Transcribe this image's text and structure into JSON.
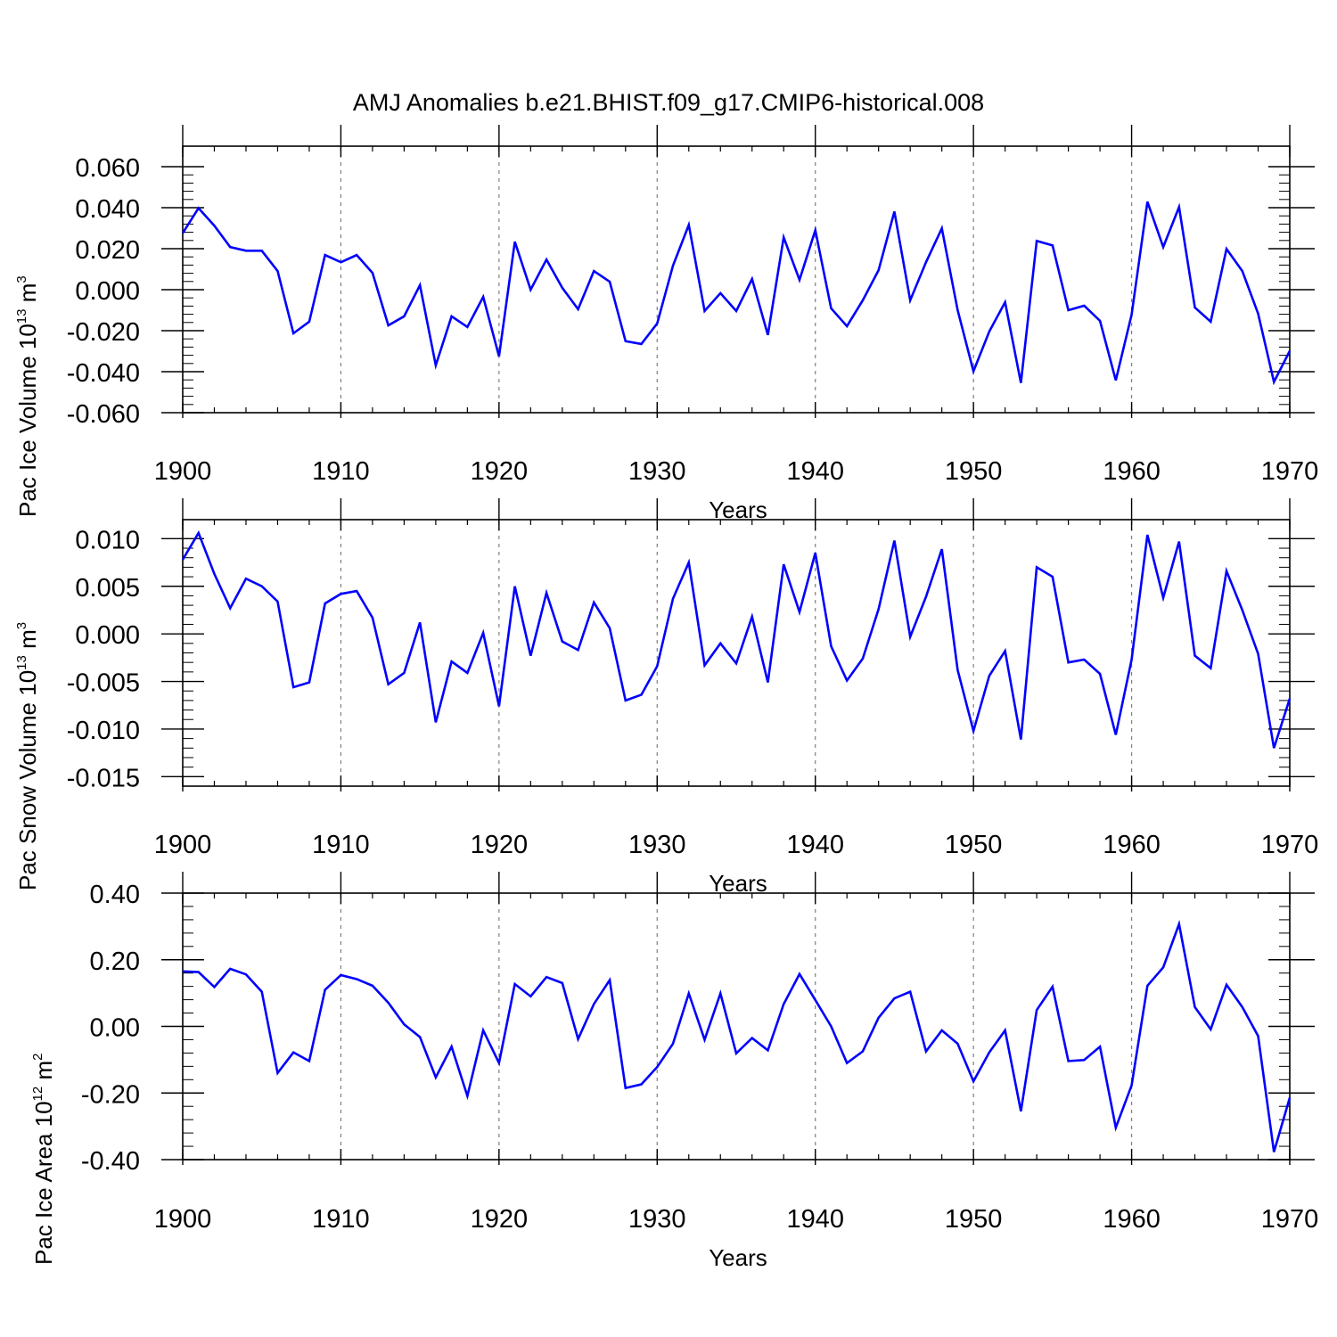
{
  "title": "AMJ Anomalies b.e21.BHIST.f09_g17.CMIP6-historical.008",
  "colors": {
    "series": "#0000ff",
    "axis": "#000000",
    "grid": "#7f7f7f"
  },
  "chart_data": [
    {
      "type": "line",
      "ylabel": {
        "text": "Pac Ice Volume 10",
        "exp": "13",
        "unit": " m",
        "unit_exp": "3"
      },
      "xlabel": "Years",
      "xlim": [
        1900,
        1970
      ],
      "ylim": [
        -0.06,
        0.07
      ],
      "yticks": [
        -0.06,
        -0.04,
        -0.02,
        0.0,
        0.02,
        0.04,
        0.06
      ],
      "ytick_labels": [
        "-0.060",
        "-0.040",
        "-0.020",
        "0.000",
        "0.020",
        "0.040",
        "0.060"
      ],
      "xticks": [
        1900,
        1910,
        1920,
        1930,
        1940,
        1950,
        1960,
        1970
      ],
      "xtick_labels": [
        "1900",
        "1910",
        "1920",
        "1930",
        "1940",
        "1950",
        "1960",
        "1970"
      ],
      "grid": "dashed vertical at 1910-1960",
      "x": [
        1900,
        1901,
        1902,
        1903,
        1904,
        1905,
        1906,
        1907,
        1908,
        1909,
        1910,
        1911,
        1912,
        1913,
        1914,
        1915,
        1916,
        1917,
        1918,
        1919,
        1920,
        1921,
        1922,
        1923,
        1924,
        1925,
        1926,
        1927,
        1928,
        1929,
        1930,
        1931,
        1932,
        1933,
        1934,
        1935,
        1936,
        1937,
        1938,
        1939,
        1940,
        1941,
        1942,
        1943,
        1944,
        1945,
        1946,
        1947,
        1948,
        1949,
        1950,
        1951,
        1952,
        1953,
        1954,
        1955,
        1956,
        1957,
        1958,
        1959,
        1960,
        1961,
        1962,
        1963,
        1964,
        1965,
        1966,
        1967,
        1968,
        1969,
        1970
      ],
      "series": [
        {
          "values": [
            0.0276,
            0.0398,
            0.0312,
            0.0208,
            0.019,
            0.019,
            0.0091,
            -0.0213,
            -0.0156,
            0.0169,
            0.0134,
            0.0169,
            0.0082,
            -0.0174,
            -0.013,
            0.0022,
            -0.0369,
            -0.013,
            -0.0182,
            -0.0035,
            -0.0325,
            0.0234,
            0.0,
            0.0147,
            0.0009,
            -0.0095,
            0.0091,
            0.0039,
            -0.0251,
            -0.0265,
            -0.0165,
            0.0117,
            0.0316,
            -0.0104,
            -0.0017,
            -0.0104,
            0.0052,
            -0.0221,
            0.0255,
            0.0048,
            0.029,
            -0.0091,
            -0.0178,
            -0.0052,
            0.0095,
            0.0381,
            -0.0052,
            0.0134,
            0.0299,
            -0.01,
            -0.0398,
            -0.0204,
            -0.0061,
            -0.0455,
            0.0238,
            0.0216,
            -0.01,
            -0.0078,
            -0.0152,
            -0.0442,
            -0.0122,
            0.0429,
            0.0208,
            0.0403,
            -0.0087,
            -0.0156,
            0.0199,
            0.0091,
            -0.0117,
            -0.045,
            -0.0299
          ]
        }
      ]
    },
    {
      "type": "line",
      "ylabel": {
        "text": "Pac Snow Volume 10",
        "exp": "13",
        "unit": " m",
        "unit_exp": "3"
      },
      "xlabel": "Years",
      "xlim": [
        1900,
        1970
      ],
      "ylim": [
        -0.016,
        0.012
      ],
      "yticks": [
        -0.015,
        -0.01,
        -0.005,
        0.0,
        0.005,
        0.01
      ],
      "ytick_labels": [
        "-0.015",
        "-0.010",
        "-0.005",
        "0.000",
        "0.005",
        "0.010"
      ],
      "xticks": [
        1900,
        1910,
        1920,
        1930,
        1940,
        1950,
        1960,
        1970
      ],
      "xtick_labels": [
        "1900",
        "1910",
        "1920",
        "1930",
        "1940",
        "1950",
        "1960",
        "1970"
      ],
      "grid": "dashed vertical at 1910-1960",
      "x": [
        1900,
        1901,
        1902,
        1903,
        1904,
        1905,
        1906,
        1907,
        1908,
        1909,
        1910,
        1911,
        1912,
        1913,
        1914,
        1915,
        1916,
        1917,
        1918,
        1919,
        1920,
        1921,
        1922,
        1923,
        1924,
        1925,
        1926,
        1927,
        1928,
        1929,
        1930,
        1931,
        1932,
        1933,
        1934,
        1935,
        1936,
        1937,
        1938,
        1939,
        1940,
        1941,
        1942,
        1943,
        1944,
        1945,
        1946,
        1947,
        1948,
        1949,
        1950,
        1951,
        1952,
        1953,
        1954,
        1955,
        1956,
        1957,
        1958,
        1959,
        1960,
        1961,
        1962,
        1963,
        1964,
        1965,
        1966,
        1967,
        1968,
        1969,
        1970
      ],
      "series": [
        {
          "values": [
            0.0078,
            0.0106,
            0.0063,
            0.0027,
            0.0058,
            0.005,
            0.0034,
            -0.0056,
            -0.0051,
            0.0032,
            0.0042,
            0.0045,
            0.0017,
            -0.0053,
            -0.0041,
            0.0012,
            -0.0093,
            -0.0029,
            -0.0041,
            0.0001,
            -0.0076,
            0.005,
            -0.0023,
            0.0043,
            -0.0008,
            -0.0017,
            0.0033,
            0.0006,
            -0.007,
            -0.0064,
            -0.0034,
            0.0037,
            0.0075,
            -0.0033,
            -0.001,
            -0.0031,
            0.0018,
            -0.0051,
            0.0073,
            0.0023,
            0.0085,
            -0.0013,
            -0.0049,
            -0.0026,
            0.0026,
            0.0098,
            -0.0003,
            0.0039,
            0.0089,
            -0.0038,
            -0.0102,
            -0.0044,
            -0.0018,
            -0.0111,
            0.007,
            0.006,
            -0.003,
            -0.0027,
            -0.0042,
            -0.0106,
            -0.0027,
            0.0104,
            0.0038,
            0.0097,
            -0.0023,
            -0.0036,
            0.0066,
            0.0025,
            -0.0021,
            -0.012,
            -0.0068
          ]
        }
      ]
    },
    {
      "type": "line",
      "ylabel": {
        "text": "Pac Ice Area 10",
        "exp": "12",
        "unit": " m",
        "unit_exp": "2"
      },
      "xlabel": "Years",
      "xlim": [
        1900,
        1970
      ],
      "ylim": [
        -0.4,
        0.4
      ],
      "yticks": [
        -0.4,
        -0.2,
        0.0,
        0.2,
        0.4
      ],
      "ytick_labels": [
        "-0.40",
        "-0.20",
        "0.00",
        "0.20",
        "0.40"
      ],
      "xticks": [
        1900,
        1910,
        1920,
        1930,
        1940,
        1950,
        1960,
        1970
      ],
      "xtick_labels": [
        "1900",
        "1910",
        "1920",
        "1930",
        "1940",
        "1950",
        "1960",
        "1970"
      ],
      "grid": "dashed vertical at 1910-1960",
      "x": [
        1900,
        1901,
        1902,
        1903,
        1904,
        1905,
        1906,
        1907,
        1908,
        1909,
        1910,
        1911,
        1912,
        1913,
        1914,
        1915,
        1916,
        1917,
        1918,
        1919,
        1920,
        1921,
        1922,
        1923,
        1924,
        1925,
        1926,
        1927,
        1928,
        1929,
        1930,
        1931,
        1932,
        1933,
        1934,
        1935,
        1936,
        1937,
        1938,
        1939,
        1940,
        1941,
        1942,
        1943,
        1944,
        1945,
        1946,
        1947,
        1948,
        1949,
        1950,
        1951,
        1952,
        1953,
        1954,
        1955,
        1956,
        1957,
        1958,
        1959,
        1960,
        1961,
        1962,
        1963,
        1964,
        1965,
        1966,
        1967,
        1968,
        1969,
        1970
      ],
      "series": [
        {
          "values": [
            0.165,
            0.163,
            0.118,
            0.173,
            0.156,
            0.104,
            -0.14,
            -0.078,
            -0.104,
            0.11,
            0.154,
            0.142,
            0.122,
            0.071,
            0.006,
            -0.032,
            -0.153,
            -0.061,
            -0.209,
            -0.012,
            -0.11,
            0.127,
            0.09,
            0.148,
            0.13,
            -0.038,
            0.067,
            0.139,
            -0.185,
            -0.174,
            -0.122,
            -0.052,
            0.099,
            -0.04,
            0.099,
            -0.081,
            -0.035,
            -0.072,
            0.067,
            0.157,
            0.079,
            0.0,
            -0.11,
            -0.075,
            0.026,
            0.084,
            0.104,
            -0.075,
            -0.012,
            -0.052,
            -0.165,
            -0.078,
            -0.012,
            -0.255,
            0.049,
            0.119,
            -0.104,
            -0.101,
            -0.061,
            -0.304,
            -0.177,
            0.122,
            0.177,
            0.307,
            0.058,
            -0.009,
            0.125,
            0.058,
            -0.029,
            -0.377,
            -0.214
          ]
        }
      ]
    }
  ]
}
